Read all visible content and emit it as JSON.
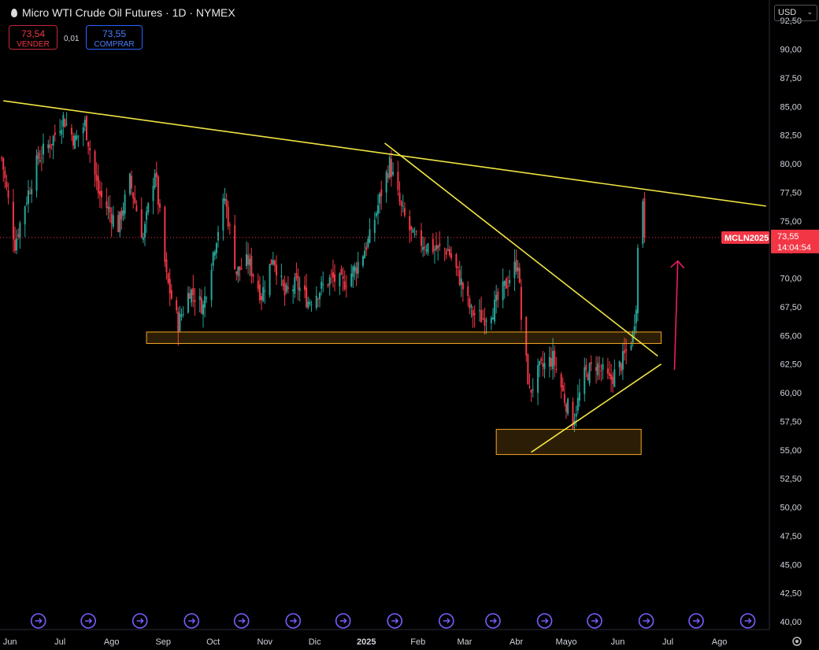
{
  "header": {
    "title": "Micro WTI Crude Oil Futures · 1D · NYMEX",
    "sell_price": "73,54",
    "sell_label": "VENDER",
    "spread": "0,01",
    "buy_price": "73,55",
    "buy_label": "COMPRAR",
    "currency": "USD"
  },
  "price_tag": {
    "symbol": "MCLN2025",
    "price": "73,55",
    "countdown": "14:04:54"
  },
  "colors": {
    "up": "#26a69a",
    "down": "#f23645",
    "trendline": "#f0e442",
    "zone_border": "#f5a623",
    "arrow": "#e91e63",
    "event_icon": "#7b5cff"
  },
  "chart_data": {
    "type": "candlestick",
    "interval": "1D",
    "ylim": [
      40,
      93.75
    ],
    "y_ticks": [
      "92,50",
      "90,00",
      "87,50",
      "85,00",
      "82,50",
      "80,00",
      "77,50",
      "75,00",
      "72,50",
      "70,00",
      "67,50",
      "65,00",
      "62,50",
      "60,00",
      "57,50",
      "55,00",
      "52,50",
      "50,00",
      "47,50",
      "45,00",
      "42,50",
      "40,00"
    ],
    "x_ticks": [
      "Jun",
      "Jul",
      "Ago",
      "Sep",
      "Oct",
      "Nov",
      "Dic",
      "2025",
      "Feb",
      "Mar",
      "Abr",
      "Mayo",
      "Jun",
      "Jul",
      "Ago"
    ],
    "x_tick_dates": [
      "2024-06-01",
      "2024-07-01",
      "2024-08-01",
      "2024-09-01",
      "2024-10-01",
      "2024-11-01",
      "2024-12-01",
      "2025-01-01",
      "2025-02-01",
      "2025-03-01",
      "2025-04-01",
      "2025-05-01",
      "2025-06-01",
      "2025-07-01",
      "2025-08-01"
    ],
    "x_range": [
      "2024-05-26",
      "2025-08-31"
    ],
    "last_price": 73.55,
    "close_path": [
      [
        "2024-05-27",
        80.5
      ],
      [
        "2024-06-04",
        73.0
      ],
      [
        "2024-06-10",
        76.5
      ],
      [
        "2024-06-18",
        80.5
      ],
      [
        "2024-06-26",
        82.0
      ],
      [
        "2024-07-03",
        84.0
      ],
      [
        "2024-07-10",
        82.0
      ],
      [
        "2024-07-16",
        83.5
      ],
      [
        "2024-07-24",
        77.5
      ],
      [
        "2024-08-05",
        74.5
      ],
      [
        "2024-08-12",
        78.5
      ],
      [
        "2024-08-20",
        73.5
      ],
      [
        "2024-08-27",
        79.5
      ],
      [
        "2024-09-03",
        70.0
      ],
      [
        "2024-09-10",
        66.0
      ],
      [
        "2024-09-17",
        69.0
      ],
      [
        "2024-09-25",
        67.5
      ],
      [
        "2024-10-02",
        73.0
      ],
      [
        "2024-10-08",
        77.0
      ],
      [
        "2024-10-15",
        70.5
      ],
      [
        "2024-10-22",
        71.5
      ],
      [
        "2024-10-30",
        68.5
      ],
      [
        "2024-11-06",
        72.0
      ],
      [
        "2024-11-13",
        68.5
      ],
      [
        "2024-11-20",
        69.5
      ],
      [
        "2024-11-27",
        68.0
      ],
      [
        "2024-12-04",
        69.0
      ],
      [
        "2024-12-11",
        70.0
      ],
      [
        "2024-12-18",
        69.5
      ],
      [
        "2024-12-26",
        71.0
      ],
      [
        "2025-01-03",
        73.5
      ],
      [
        "2025-01-10",
        77.5
      ],
      [
        "2025-01-15",
        80.0
      ],
      [
        "2025-01-22",
        76.0
      ],
      [
        "2025-01-29",
        73.5
      ],
      [
        "2025-02-05",
        73.0
      ],
      [
        "2025-02-12",
        72.5
      ],
      [
        "2025-02-19",
        72.5
      ],
      [
        "2025-02-26",
        70.0
      ],
      [
        "2025-03-05",
        67.0
      ],
      [
        "2025-03-12",
        66.5
      ],
      [
        "2025-03-19",
        67.5
      ],
      [
        "2025-03-26",
        69.5
      ],
      [
        "2025-04-02",
        71.5
      ],
      [
        "2025-04-04",
        66.5
      ],
      [
        "2025-04-09",
        60.0
      ],
      [
        "2025-04-15",
        62.0
      ],
      [
        "2025-04-23",
        63.0
      ],
      [
        "2025-04-30",
        59.5
      ],
      [
        "2025-05-05",
        57.5
      ],
      [
        "2025-05-12",
        61.5
      ],
      [
        "2025-05-19",
        62.5
      ],
      [
        "2025-05-27",
        61.0
      ],
      [
        "2025-06-03",
        62.5
      ],
      [
        "2025-06-10",
        65.0
      ],
      [
        "2025-06-12",
        68.0
      ],
      [
        "2025-06-13",
        72.5
      ],
      [
        "2025-06-16",
        77.0
      ],
      [
        "2025-06-17",
        73.55
      ]
    ],
    "trendlines": [
      {
        "from": [
          "2024-05-28",
          85.5
        ],
        "to": [
          "2025-08-29",
          76.3
        ]
      },
      {
        "from": [
          "2025-01-12",
          81.8
        ],
        "to": [
          "2025-06-25",
          63.2
        ]
      },
      {
        "from": [
          "2025-04-10",
          54.8
        ],
        "to": [
          "2025-06-27",
          62.5
        ]
      }
    ],
    "zones": [
      {
        "from": "2024-08-22",
        "to": "2025-06-27",
        "low": 64.3,
        "high": 65.3
      },
      {
        "from": "2025-03-20",
        "to": "2025-06-15",
        "low": 54.6,
        "high": 56.8
      }
    ],
    "arrow": {
      "from": [
        "2025-07-05",
        62.0
      ],
      "to": [
        "2025-07-07",
        71.5
      ]
    }
  }
}
